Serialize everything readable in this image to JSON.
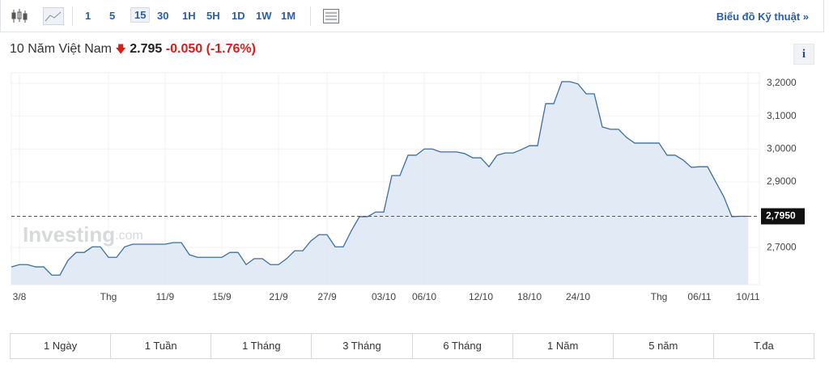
{
  "toolbar": {
    "intervals": [
      "1",
      "5",
      "15",
      "30",
      "1H",
      "5H",
      "1D",
      "1W",
      "1M"
    ],
    "link": "Biểu đồ Kỹ thuật"
  },
  "chart_data": {
    "type": "line",
    "title": "10 Năm Việt Nam",
    "price": "2.795",
    "change": "-0.050",
    "change_pct": "(-1.76%)",
    "watermark": "Investing",
    "watermark_suffix": ".com",
    "categories": [
      null,
      "3/8",
      null,
      null,
      null,
      null,
      null,
      null,
      null,
      null,
      null,
      null,
      "Thg",
      null,
      null,
      null,
      null,
      null,
      null,
      "11/9",
      null,
      null,
      null,
      null,
      null,
      null,
      "15/9",
      null,
      null,
      null,
      null,
      null,
      null,
      "21/9",
      null,
      null,
      null,
      null,
      null,
      "27/9",
      null,
      null,
      null,
      null,
      null,
      null,
      "03/10",
      null,
      null,
      null,
      null,
      "06/10",
      null,
      null,
      null,
      null,
      null,
      null,
      "12/10",
      null,
      null,
      null,
      null,
      null,
      "18/10",
      null,
      null,
      null,
      null,
      null,
      "24/10",
      null,
      null,
      null,
      null,
      null,
      null,
      null,
      null,
      null,
      "Thg",
      null,
      null,
      null,
      null,
      "06/11",
      null,
      null,
      null,
      null,
      null,
      "10/11"
    ],
    "series": [
      {
        "name": "10 Năm Việt Nam",
        "color": "#3a6ea5",
        "values": [
          2.641,
          2.648,
          2.648,
          2.641,
          2.641,
          2.616,
          2.616,
          2.661,
          2.685,
          2.685,
          2.702,
          2.702,
          2.67,
          2.67,
          2.702,
          2.71,
          2.71,
          2.71,
          2.71,
          2.71,
          2.715,
          2.715,
          2.678,
          2.67,
          2.67,
          2.67,
          2.67,
          2.685,
          2.685,
          2.648,
          2.666,
          2.666,
          2.648,
          2.648,
          2.666,
          2.69,
          2.69,
          2.72,
          2.739,
          2.739,
          2.702,
          2.702,
          2.751,
          2.794,
          2.794,
          2.808,
          2.808,
          2.919,
          2.919,
          2.981,
          2.981,
          3.0,
          3.0,
          2.991,
          2.991,
          2.991,
          2.986,
          2.973,
          2.973,
          2.946,
          2.981,
          2.988,
          2.988,
          2.998,
          3.01,
          3.01,
          3.138,
          3.138,
          3.205,
          3.205,
          3.198,
          3.168,
          3.168,
          3.067,
          3.06,
          3.06,
          3.035,
          3.018,
          3.018,
          3.018,
          3.018,
          2.981,
          2.981,
          2.966,
          2.944,
          2.946,
          2.946,
          2.9,
          2.855,
          2.794,
          2.795,
          2.795
        ]
      }
    ],
    "ylim": [
      2.587,
      3.232
    ],
    "yticks": [
      {
        "value": 2.7,
        "label": "2,7000"
      },
      {
        "value": 2.9,
        "label": "2,9000"
      },
      {
        "value": 3.0,
        "label": "3,0000"
      },
      {
        "value": 3.1,
        "label": "3,1000"
      },
      {
        "value": 3.2,
        "label": "3,2000"
      }
    ],
    "last_price": {
      "value": 2.795,
      "label": "2,7950"
    },
    "grid": true
  },
  "ranges": [
    "1 Ngày",
    "1 Tuần",
    "1 Tháng",
    "3 Tháng",
    "6 Tháng",
    "1 Năm",
    "5 năm",
    "T.đa"
  ]
}
